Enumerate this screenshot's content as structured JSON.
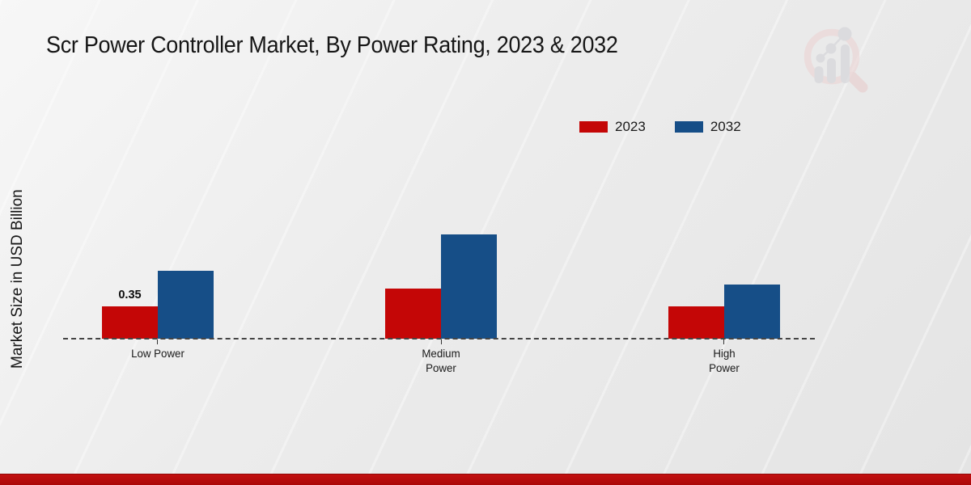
{
  "title": "Scr Power Controller Market, By Power Rating, 2023 & 2032",
  "ylabel": "Market Size in USD Billion",
  "logo": {
    "name": "market-research-future-watermark"
  },
  "footer": {
    "bar_color": "#b20d0d"
  },
  "chart_data": {
    "type": "bar",
    "title": "Scr Power Controller Market, By Power Rating, 2023 & 2032",
    "xlabel": "",
    "ylabel": "Market Size in USD Billion",
    "categories": [
      "Low Power",
      "Medium Power",
      "High Power"
    ],
    "tick_label_lines": [
      [
        "Low Power"
      ],
      [
        "Medium",
        "Power"
      ],
      [
        "High",
        "Power"
      ]
    ],
    "series": [
      {
        "name": "2023",
        "color": "#c40606",
        "values": [
          0.35,
          0.54,
          0.35
        ],
        "bar_labels": [
          "0.35",
          "",
          ""
        ]
      },
      {
        "name": "2032",
        "color": "#164e87",
        "values": [
          0.74,
          1.13,
          0.59
        ],
        "bar_labels": [
          "",
          "",
          ""
        ]
      }
    ],
    "ylim": [
      0,
      2
    ],
    "grid": false,
    "legend_position": "top-right",
    "baseline_style": "dashed"
  }
}
